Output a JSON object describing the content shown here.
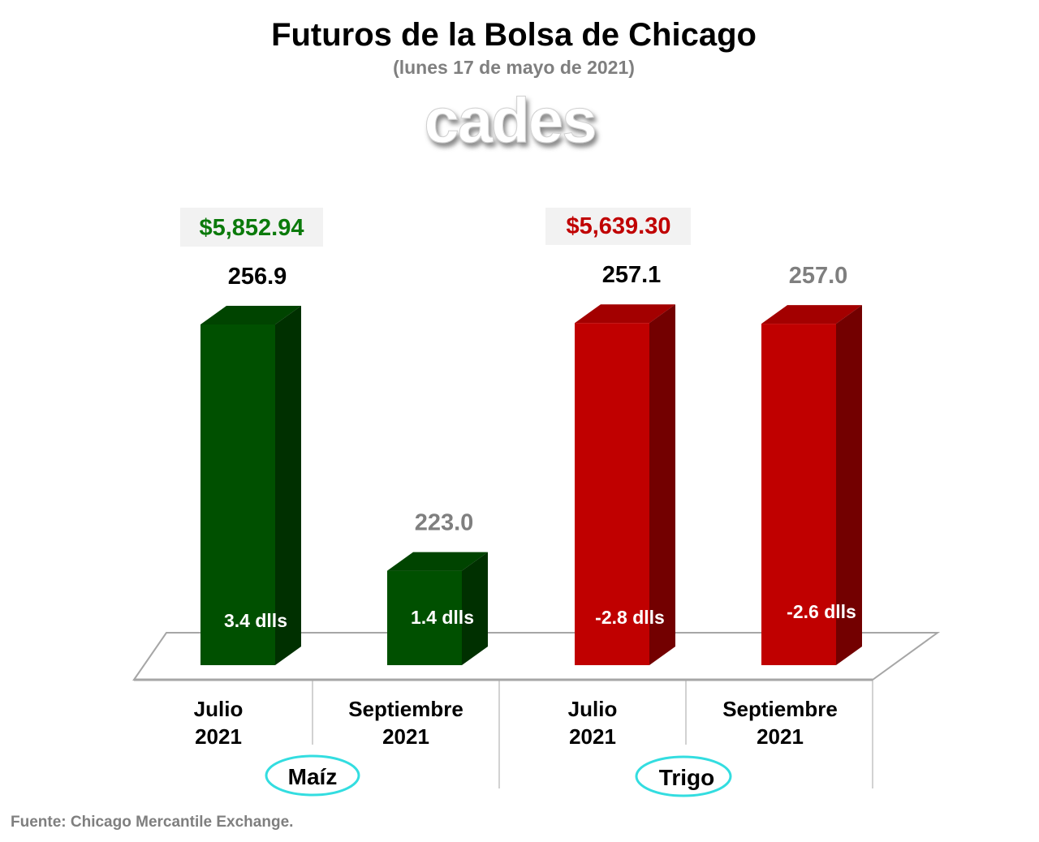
{
  "chart_data": {
    "type": "bar",
    "title": "Futuros de la Bolsa de Chicago",
    "subtitle": "(lunes 17 de mayo de 2021)",
    "logo": "cades",
    "categories": [
      {
        "line1": "Julio",
        "line2": "2021"
      },
      {
        "line1": "Septiembre",
        "line2": "2021"
      },
      {
        "line1": "Julio",
        "line2": "2021"
      },
      {
        "line1": "Septiembre",
        "line2": "2021"
      }
    ],
    "groups": [
      {
        "name": "Maíz",
        "price": "$5,852.94",
        "color": "#0b7a0b"
      },
      {
        "name": "Trigo",
        "price": "$5,639.30",
        "color": "#c00000"
      }
    ],
    "values": [
      256.9,
      223.0,
      257.1,
      257.0
    ],
    "value_labels": [
      "256.9",
      "223.0",
      "257.1",
      "257.0"
    ],
    "value_label_colors": [
      "#000000",
      "#7f7f7f",
      "#000000",
      "#7f7f7f"
    ],
    "changes": [
      "3.4 dlls",
      "1.4 dlls",
      "-2.8 dlls",
      "-2.6 dlls"
    ],
    "bar_colors": [
      "#005000",
      "#005000",
      "#c00000",
      "#c00000"
    ],
    "ylim": [
      210,
      260
    ],
    "grid": false,
    "source": "Fuente: Chicago Mercantile Exchange."
  }
}
